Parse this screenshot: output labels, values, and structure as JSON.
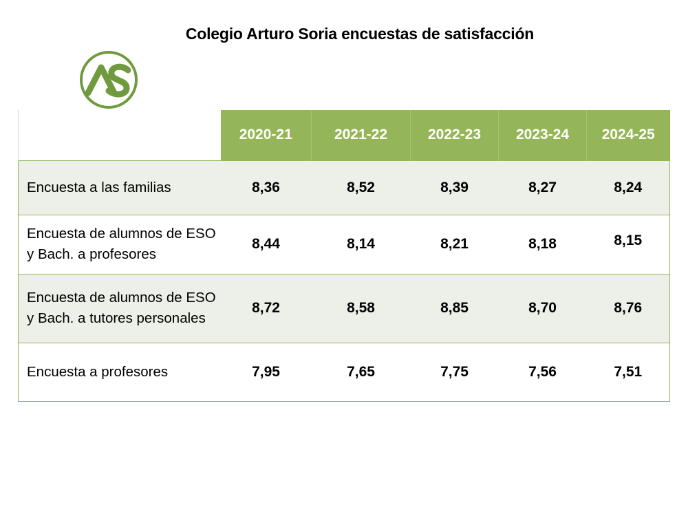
{
  "title": "Colegio Arturo Soria encuestas de satisfacción",
  "logo": {
    "text": "AS",
    "color": "#6f9a3e"
  },
  "colors": {
    "header_bg": "#95b658",
    "header_text": "#ffffff",
    "shade_row": "#ecf0e8",
    "border": "#95b658"
  },
  "table": {
    "header": [
      "2020-21",
      "2021-22",
      "2022-23",
      "2023-24",
      "2024-25"
    ],
    "rows": [
      {
        "label": "Encuesta a las familias",
        "values": [
          "8,36",
          "8,52",
          "8,39",
          "8,27",
          "8,24"
        ]
      },
      {
        "label": "Encuesta de alumnos de ESO y Bach. a profesores",
        "values": [
          "8,44",
          "8,14",
          "8,21",
          "8,18",
          "8,15"
        ]
      },
      {
        "label": "Encuesta de alumnos de ESO y Bach. a tutores personales",
        "values": [
          "8,72",
          "8,58",
          "8,85",
          "8,70",
          "8,76"
        ]
      },
      {
        "label": "Encuesta a profesores",
        "values": [
          "7,95",
          "7,65",
          "7,75",
          "7,56",
          "7,51"
        ]
      }
    ]
  }
}
